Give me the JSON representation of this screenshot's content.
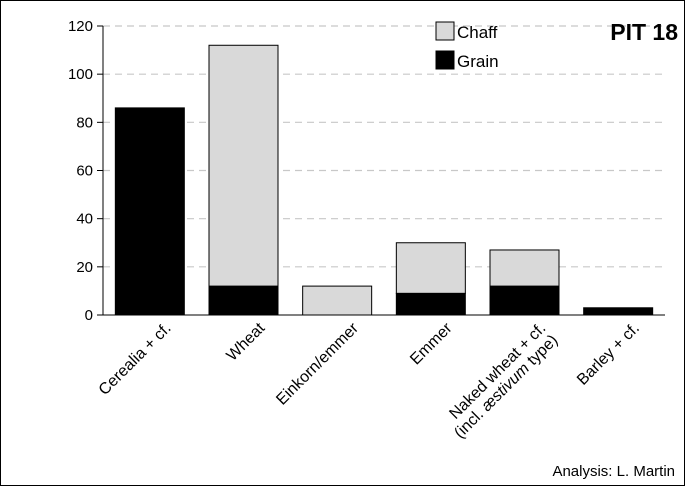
{
  "chart_data": {
    "type": "bar",
    "stacked": true,
    "title": "PIT 18",
    "xlabel": "",
    "ylabel": "",
    "ylim": [
      0,
      120
    ],
    "yticks": [
      0,
      20,
      40,
      60,
      80,
      100,
      120
    ],
    "grid": "horizontal-dashed",
    "legend_position": "top-right",
    "categories": [
      {
        "line1": "Cerealia + cf.",
        "line2": "",
        "line2_pre": "",
        "line2_italic": "",
        "line2_post": ""
      },
      {
        "line1": "Wheat",
        "line2": "",
        "line2_pre": "",
        "line2_italic": "",
        "line2_post": ""
      },
      {
        "line1": "Einkorn/emmer",
        "line2": "",
        "line2_pre": "",
        "line2_italic": "",
        "line2_post": ""
      },
      {
        "line1": "Emmer",
        "line2": "",
        "line2_pre": "",
        "line2_italic": "",
        "line2_post": ""
      },
      {
        "line1": "Naked wheat + cf.",
        "line2_pre": "(incl. ",
        "line2_italic": "æstivum",
        "line2_post": " type)"
      },
      {
        "line1": "Barley + cf.",
        "line2": "",
        "line2_pre": "",
        "line2_italic": "",
        "line2_post": ""
      }
    ],
    "series": [
      {
        "name": "Grain",
        "color": "#000000",
        "values": [
          86,
          12,
          0,
          9,
          12,
          3
        ]
      },
      {
        "name": "Chaff",
        "color": "#d9d9d9",
        "values": [
          0,
          100,
          12,
          21,
          15,
          0
        ]
      }
    ],
    "legend_order": [
      "Chaff",
      "Grain"
    ],
    "annotation": "Analysis: L. Martin"
  }
}
